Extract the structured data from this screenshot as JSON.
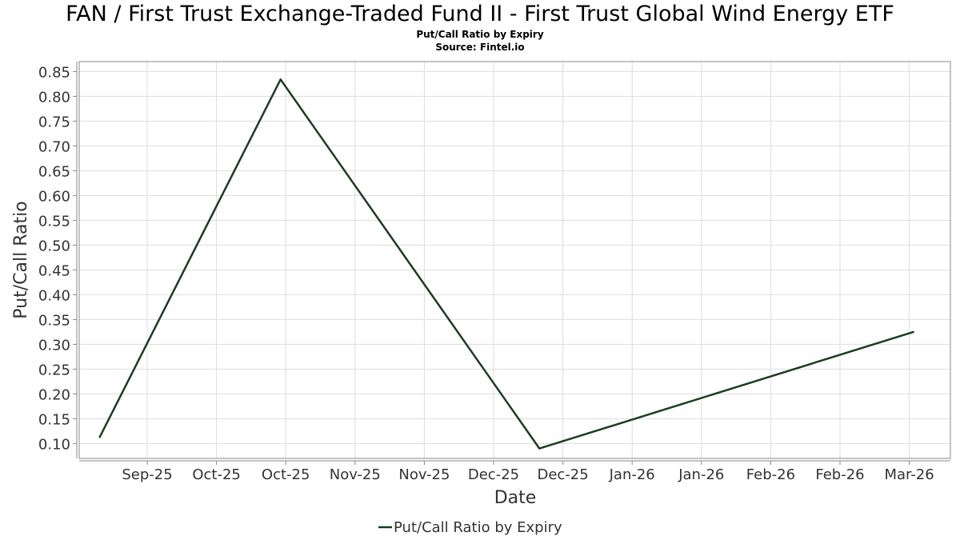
{
  "header": {
    "title": "FAN / First Trust Exchange-Traded Fund II - First Trust Global Wind Energy ETF",
    "subtitle": "Put/Call Ratio by Expiry",
    "source": "Source: Fintel.io"
  },
  "chart_data": {
    "type": "line",
    "xlabel": "Date",
    "ylabel": "Put/Call Ratio",
    "x_tick_labels": [
      "Sep-25",
      "Oct-25",
      "Oct-25",
      "Nov-25",
      "Nov-25",
      "Dec-25",
      "Dec-25",
      "Jan-26",
      "Jan-26",
      "Feb-26",
      "Feb-26",
      "Mar-26"
    ],
    "y_ticks": [
      0.1,
      0.15,
      0.2,
      0.25,
      0.3,
      0.35,
      0.4,
      0.45,
      0.5,
      0.55,
      0.6,
      0.65,
      0.7,
      0.75,
      0.8,
      0.85
    ],
    "ylim": [
      0.07,
      0.87
    ],
    "grid": true,
    "legend_position": "bottom-center",
    "series": [
      {
        "name": "Put/Call Ratio by Expiry",
        "color": "#1b3d1f",
        "x": [
          "2025-09-03",
          "2025-10-17",
          "2025-12-19",
          "2026-03-20"
        ],
        "y": [
          0.113,
          0.834,
          0.09,
          0.325
        ]
      }
    ]
  }
}
